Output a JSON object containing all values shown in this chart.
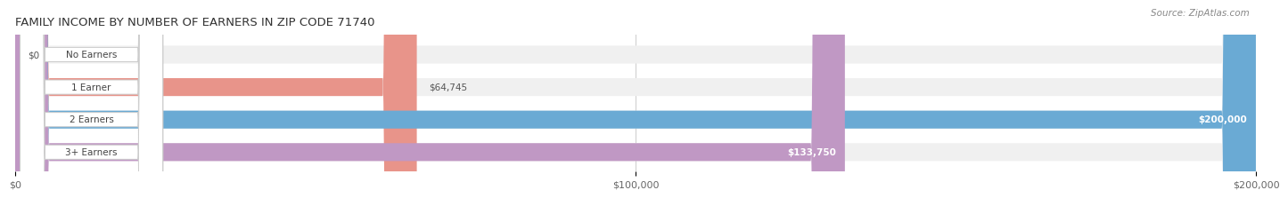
{
  "title": "FAMILY INCOME BY NUMBER OF EARNERS IN ZIP CODE 71740",
  "source": "Source: ZipAtlas.com",
  "categories": [
    "No Earners",
    "1 Earner",
    "2 Earners",
    "3+ Earners"
  ],
  "values": [
    0,
    64745,
    200000,
    133750
  ],
  "bar_colors": [
    "#f2c89e",
    "#e8948a",
    "#6aaad4",
    "#c098c4"
  ],
  "bar_bg_color": "#f0f0f0",
  "xmax": 200000,
  "xticks": [
    0,
    100000,
    200000
  ],
  "xticklabels": [
    "$0",
    "$100,000",
    "$200,000"
  ],
  "value_labels": [
    "$0",
    "$64,745",
    "$200,000",
    "$133,750"
  ],
  "value_inside": [
    false,
    false,
    true,
    true
  ],
  "title_fontsize": 9.5,
  "source_fontsize": 7.5,
  "tick_fontsize": 8,
  "bar_label_fontsize": 7.5,
  "value_label_fontsize": 7.5,
  "fig_bg_color": "#ffffff"
}
